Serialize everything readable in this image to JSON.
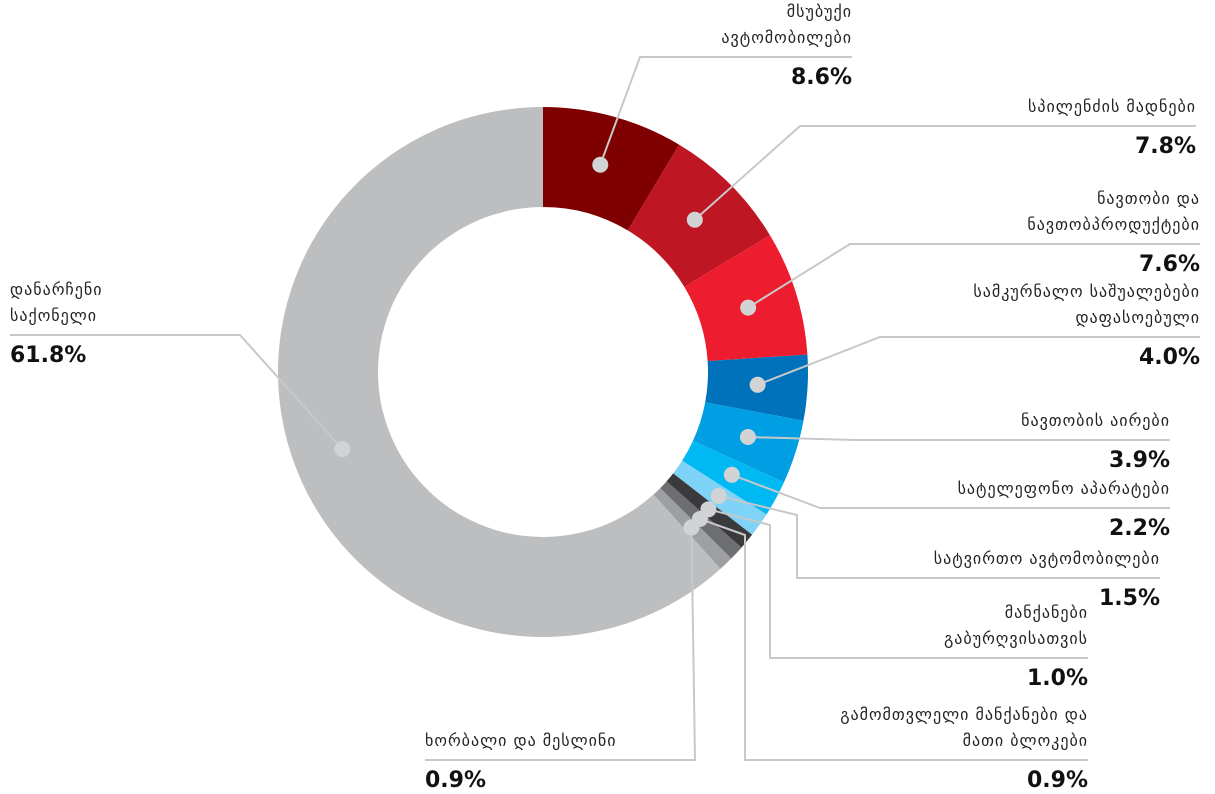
{
  "chart_data": {
    "type": "donut",
    "categories": [
      "მსუბუქი ავტომობილები",
      "სპილენძის მადნები",
      "ნავთობი და ნავთობპროდუქტები",
      "სამკურნალო საშუალებები დაფასოებული",
      "ნავთობის აირები",
      "სატელეფონო აპარატები",
      "სატვირთო ავტომობილები",
      "მანქანები გაბურღვისათვის",
      "გამომთვლელი მანქანები და მათი ბლოკები",
      "ხორბალი და მესლინი",
      "დანარჩენი საქონელი"
    ],
    "values": [
      8.6,
      7.8,
      7.6,
      4.0,
      3.9,
      2.2,
      1.5,
      1.0,
      0.9,
      0.9,
      61.8
    ],
    "value_labels": [
      "8.6%",
      "7.8%",
      "7.6%",
      "4.0%",
      "3.9%",
      "2.2%",
      "1.5%",
      "1.0%",
      "0.9%",
      "0.9%",
      "61.8%"
    ],
    "colors": [
      "#7f0000",
      "#be1622",
      "#ed1c2e",
      "#0072bc",
      "#009fe3",
      "#00b9f2",
      "#7fd3f7",
      "#3a3a3c",
      "#6d6e71",
      "#9d9fa2",
      "#bcbec0"
    ]
  }
}
